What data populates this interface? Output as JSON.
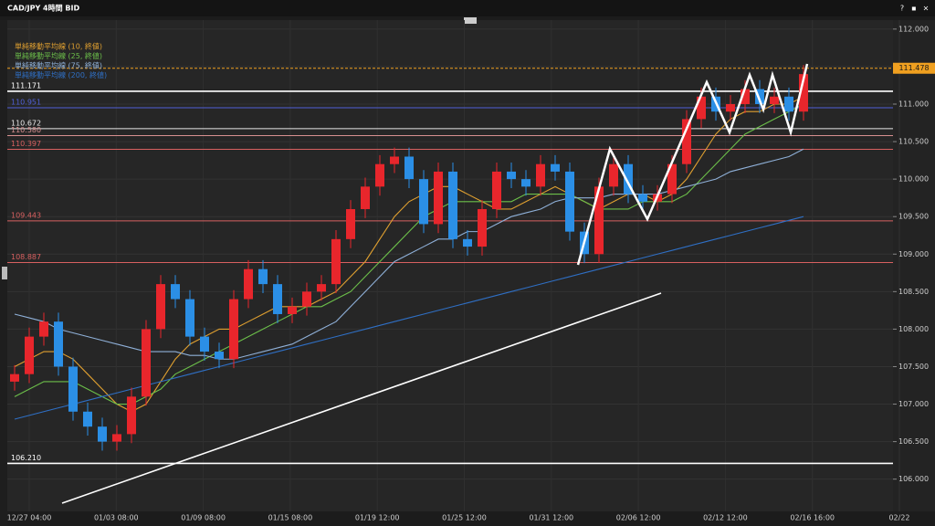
{
  "chart_data": {
    "type": "candlestick",
    "title": "CAD/JPY 4時間 BID",
    "window_buttons": [
      "?",
      "▪",
      "×"
    ],
    "ylim": [
      105.57,
      112.12
    ],
    "yticks": [
      {
        "value": 106,
        "label": "106.000"
      },
      {
        "value": 106.5,
        "label": "106.500"
      },
      {
        "value": 107,
        "label": "107.000"
      },
      {
        "value": 107.5,
        "label": "107.500"
      },
      {
        "value": 108,
        "label": "108.000"
      },
      {
        "value": 108.5,
        "label": "108.500"
      },
      {
        "value": 109,
        "label": "109.000"
      },
      {
        "value": 109.5,
        "label": "109.500"
      },
      {
        "value": 110,
        "label": "110.000"
      },
      {
        "value": 110.5,
        "label": "110.500"
      },
      {
        "value": 111,
        "label": "111.000"
      },
      {
        "value": 111.5,
        "label": "111.500"
      },
      {
        "value": 112,
        "label": "112.000"
      }
    ],
    "xtick_labels": [
      "12/27 04:00",
      "01/03 08:00",
      "01/09 08:00",
      "01/15 08:00",
      "01/19 12:00",
      "01/25 12:00",
      "01/31 12:00",
      "02/06 12:00",
      "02/12 12:00",
      "02/16 16:00",
      "02/22"
    ],
    "up_color": "#e8262c",
    "down_color": "#2b8fe6",
    "candles": {
      "open": [
        107.3,
        107.4,
        107.9,
        108.1,
        107.5,
        106.9,
        106.7,
        106.5,
        106.6,
        107.1,
        108.0,
        108.6,
        108.4,
        107.9,
        107.7,
        107.6,
        108.4,
        108.8,
        108.6,
        108.2,
        108.3,
        108.5,
        108.6,
        109.2,
        109.6,
        109.9,
        110.2,
        110.3,
        110.0,
        109.4,
        110.1,
        109.2,
        109.1,
        109.6,
        110.1,
        110.0,
        109.9,
        110.2,
        110.1,
        109.3,
        109.0,
        109.9,
        110.2,
        109.8,
        109.7,
        109.8,
        110.2,
        110.8,
        111.1,
        110.9,
        111.0,
        111.2,
        111.0,
        111.1,
        110.9
      ],
      "high": [
        107.52,
        108.02,
        108.22,
        108.22,
        107.62,
        107.02,
        106.82,
        106.72,
        107.22,
        108.12,
        108.72,
        108.72,
        108.52,
        108.02,
        107.82,
        108.52,
        108.92,
        108.92,
        108.72,
        108.42,
        108.62,
        108.72,
        109.32,
        109.72,
        110.02,
        110.32,
        110.42,
        110.42,
        110.12,
        110.22,
        110.22,
        109.32,
        109.72,
        110.22,
        110.22,
        110.12,
        110.32,
        110.32,
        110.22,
        109.42,
        110.02,
        110.32,
        110.32,
        109.92,
        109.92,
        110.32,
        110.92,
        111.22,
        111.22,
        111.12,
        111.32,
        111.32,
        111.22,
        111.22,
        111.52
      ],
      "low": [
        107.18,
        107.28,
        107.78,
        107.38,
        106.78,
        106.58,
        106.38,
        106.38,
        106.48,
        106.98,
        107.88,
        108.28,
        107.78,
        107.58,
        107.48,
        107.48,
        108.28,
        108.48,
        108.08,
        108.08,
        108.18,
        108.38,
        108.48,
        109.08,
        109.48,
        109.78,
        110.08,
        109.88,
        109.28,
        109.28,
        109.08,
        108.98,
        108.98,
        109.48,
        109.88,
        109.78,
        109.78,
        109.98,
        109.18,
        108.88,
        108.88,
        109.78,
        109.68,
        109.58,
        109.58,
        109.68,
        110.08,
        110.68,
        110.78,
        110.78,
        110.88,
        110.88,
        110.88,
        110.78,
        110.78
      ],
      "close": [
        107.4,
        107.9,
        108.1,
        107.5,
        106.9,
        106.7,
        106.5,
        106.6,
        107.1,
        108.0,
        108.6,
        108.4,
        107.9,
        107.7,
        107.6,
        108.4,
        108.8,
        108.6,
        108.2,
        108.3,
        108.5,
        108.6,
        109.2,
        109.6,
        109.9,
        110.2,
        110.3,
        110.0,
        109.4,
        110.1,
        109.2,
        109.1,
        109.6,
        110.1,
        110.0,
        109.9,
        110.2,
        110.1,
        109.3,
        109.0,
        109.9,
        110.2,
        109.8,
        109.7,
        109.8,
        110.2,
        110.8,
        111.1,
        110.9,
        111.0,
        111.2,
        111.0,
        111.1,
        110.9,
        111.4
      ]
    },
    "series": [
      {
        "name": "単純移動平均線 (10, 終値)",
        "color": "#e0a030",
        "values": [
          107.5,
          107.6,
          107.7,
          107.7,
          107.6,
          107.4,
          107.2,
          107.0,
          106.9,
          107.0,
          107.3,
          107.6,
          107.8,
          107.9,
          108.0,
          108.0,
          108.1,
          108.2,
          108.3,
          108.3,
          108.3,
          108.4,
          108.5,
          108.7,
          108.9,
          109.2,
          109.5,
          109.7,
          109.8,
          109.9,
          109.9,
          109.8,
          109.7,
          109.6,
          109.6,
          109.7,
          109.8,
          109.9,
          109.8,
          109.7,
          109.6,
          109.7,
          109.8,
          109.8,
          109.7,
          109.8,
          110.0,
          110.3,
          110.6,
          110.8,
          110.9,
          110.9,
          111.0,
          111.0,
          111.1
        ]
      },
      {
        "name": "単純移動平均線 (25, 終値)",
        "color": "#6cbf4a",
        "values": [
          107.1,
          107.2,
          107.3,
          107.3,
          107.3,
          107.2,
          107.1,
          107.0,
          107.0,
          107.1,
          107.2,
          107.4,
          107.5,
          107.6,
          107.7,
          107.8,
          107.9,
          108.0,
          108.1,
          108.2,
          108.3,
          108.3,
          108.4,
          108.5,
          108.7,
          108.9,
          109.1,
          109.3,
          109.5,
          109.6,
          109.7,
          109.7,
          109.7,
          109.7,
          109.7,
          109.8,
          109.8,
          109.8,
          109.8,
          109.7,
          109.6,
          109.6,
          109.6,
          109.7,
          109.7,
          109.7,
          109.8,
          110.0,
          110.2,
          110.4,
          110.6,
          110.7,
          110.8,
          110.9,
          111.0
        ]
      },
      {
        "name": "単純移動平均線 (75, 終値)",
        "color": "#8fb0d8",
        "values": [
          108.2,
          108.15,
          108.1,
          108.0,
          107.95,
          107.9,
          107.85,
          107.8,
          107.75,
          107.7,
          107.7,
          107.7,
          107.65,
          107.65,
          107.6,
          107.6,
          107.65,
          107.7,
          107.75,
          107.8,
          107.9,
          108.0,
          108.1,
          108.3,
          108.5,
          108.7,
          108.9,
          109.0,
          109.1,
          109.2,
          109.2,
          109.3,
          109.3,
          109.4,
          109.5,
          109.55,
          109.6,
          109.7,
          109.75,
          109.75,
          109.75,
          109.8,
          109.8,
          109.8,
          109.8,
          109.85,
          109.9,
          109.95,
          110.0,
          110.1,
          110.15,
          110.2,
          110.25,
          110.3,
          110.4
        ]
      },
      {
        "name": "単純移動平均線 (200, 終値)",
        "color": "#2f6fc4",
        "values": [
          106.8,
          106.85,
          106.9,
          106.95,
          107.0,
          107.05,
          107.1,
          107.15,
          107.2,
          107.25,
          107.3,
          107.35,
          107.4,
          107.45,
          107.5,
          107.55,
          107.6,
          107.65,
          107.7,
          107.75,
          107.8,
          107.85,
          107.9,
          107.95,
          108.0,
          108.05,
          108.1,
          108.15,
          108.2,
          108.25,
          108.3,
          108.35,
          108.4,
          108.45,
          108.5,
          108.55,
          108.6,
          108.65,
          108.7,
          108.75,
          108.8,
          108.85,
          108.9,
          108.95,
          109.0,
          109.05,
          109.1,
          109.15,
          109.2,
          109.25,
          109.3,
          109.35,
          109.4,
          109.45,
          109.5
        ]
      }
    ],
    "levels": [
      {
        "value": 111.171,
        "label": "111.171",
        "color": "#ffffff"
      },
      {
        "value": 110.951,
        "label": "110.951",
        "color": "#5060d8"
      },
      {
        "value": 110.672,
        "label": "110.672",
        "color": "#e8e8e8"
      },
      {
        "value": 110.58,
        "label": "110.580",
        "color": "#d89090"
      },
      {
        "value": 110.397,
        "label": "110.397",
        "color": "#d86060"
      },
      {
        "value": 109.443,
        "label": "109.443",
        "color": "#d86060"
      },
      {
        "value": 108.887,
        "label": "108.887",
        "color": "#d86060"
      },
      {
        "value": 106.21,
        "label": "106.210",
        "color": "#ffffff"
      }
    ],
    "current_price": {
      "value": 111.478,
      "label": "111.478",
      "color": "#f0a020"
    }
  }
}
